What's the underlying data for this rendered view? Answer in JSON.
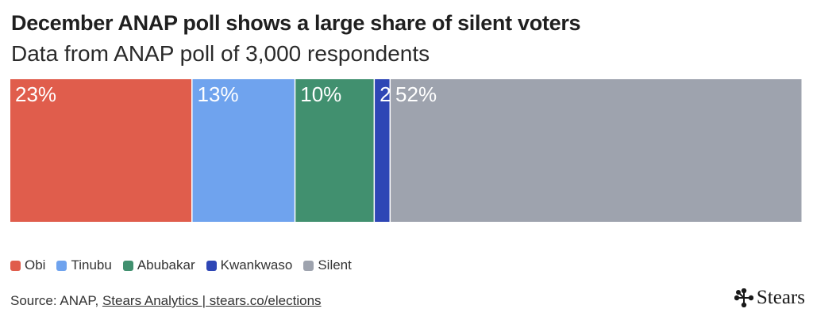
{
  "title": "December ANAP poll shows a large share of silent voters",
  "subtitle": "Data from ANAP poll of 3,000 respondents",
  "chart_data": {
    "type": "bar",
    "orientation": "horizontal-stacked-100",
    "categories": [
      "Obi",
      "Tinubu",
      "Abubakar",
      "Kwankwaso",
      "Silent"
    ],
    "values": [
      23,
      13,
      10,
      2,
      52
    ],
    "labels": [
      "23%",
      "13%",
      "10%",
      "2",
      "52%"
    ],
    "colors": [
      "#e05d4c",
      "#6fa3ee",
      "#41906f",
      "#2e46b5",
      "#9ea3ae"
    ],
    "unit": "%",
    "xlim": [
      0,
      100
    ],
    "legend_position": "bottom-left",
    "grid": false
  },
  "legend": [
    {
      "label": "Obi",
      "color": "#e05d4c"
    },
    {
      "label": "Tinubu",
      "color": "#6fa3ee"
    },
    {
      "label": "Abubakar",
      "color": "#41906f"
    },
    {
      "label": "Kwankwaso",
      "color": "#2e46b5"
    },
    {
      "label": "Silent",
      "color": "#9ea3ae"
    }
  ],
  "source": {
    "prefix": "Source: ANAP,",
    "link_text": "Stears Analytics | stears.co/elections"
  },
  "brand": {
    "name": "Stears",
    "icon": "stears-logo-icon"
  }
}
